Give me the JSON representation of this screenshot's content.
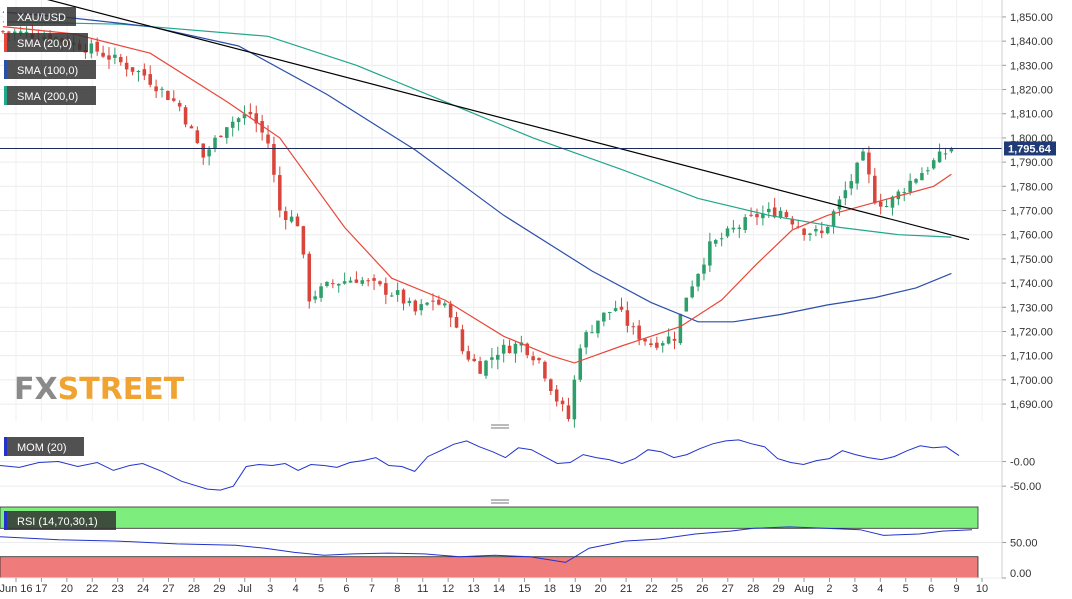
{
  "symbol": "XAU/USD",
  "indicators": {
    "sma20": {
      "label": "SMA (20,0)",
      "color": "#e8483b"
    },
    "sma100": {
      "label": "SMA (100,0)",
      "color": "#2b4fa8"
    },
    "sma200": {
      "label": "SMA (200,0)",
      "color": "#22a68c"
    },
    "mom": {
      "label": "MOM (20)",
      "color": "#2233cc"
    },
    "rsi": {
      "label": "RSI (14,70,30,1)",
      "color": "#2233cc"
    }
  },
  "logo": {
    "fx": "FX",
    "street": "STREET",
    "fx_color": "#8a8a8a",
    "street_color": "#f0a330"
  },
  "chart_data": [
    {
      "type": "candlestick",
      "title": "XAU/USD",
      "y_ticks": [
        "1,850.00",
        "1,840.00",
        "1,830.00",
        "1,820.00",
        "1,810.00",
        "1,800.00",
        "1,790.00",
        "1,780.00",
        "1,770.00",
        "1,760.00",
        "1,750.00",
        "1,740.00",
        "1,730.00",
        "1,720.00",
        "1,710.00",
        "1,700.00",
        "1,690.00"
      ],
      "ylim": [
        1683,
        1857
      ],
      "last_price": 1795.64,
      "last_price_label": "1,795.64",
      "x_labels": [
        "Jun 16",
        "17",
        "20",
        "22",
        "23",
        "24",
        "27",
        "28",
        "29",
        "Jul",
        "3",
        "4",
        "5",
        "6",
        "7",
        "8",
        "11",
        "12",
        "13",
        "14",
        "15",
        "18",
        "19",
        "20",
        "21",
        "22",
        "25",
        "26",
        "27",
        "28",
        "29",
        "Aug",
        "2",
        "3",
        "4",
        "5",
        "6",
        "9",
        "10"
      ],
      "close_path": [
        [
          0,
          1844
        ],
        [
          8,
          1842
        ],
        [
          16,
          1836
        ],
        [
          24,
          1826
        ],
        [
          30,
          1813
        ],
        [
          34,
          1792
        ],
        [
          38,
          1806
        ],
        [
          42,
          1810
        ],
        [
          45,
          1798
        ],
        [
          47,
          1770
        ],
        [
          50,
          1765
        ],
        [
          52,
          1734
        ],
        [
          56,
          1740
        ],
        [
          60,
          1742
        ],
        [
          64,
          1738
        ],
        [
          67,
          1735
        ],
        [
          70,
          1728
        ],
        [
          73,
          1733
        ],
        [
          76,
          1728
        ],
        [
          78,
          1712
        ],
        [
          81,
          1705
        ],
        [
          84,
          1712
        ],
        [
          88,
          1715
        ],
        [
          91,
          1708
        ],
        [
          94,
          1692
        ],
        [
          96,
          1684
        ],
        [
          98,
          1715
        ],
        [
          101,
          1725
        ],
        [
          104,
          1730
        ],
        [
          107,
          1720
        ],
        [
          110,
          1715
        ],
        [
          114,
          1718
        ],
        [
          116,
          1735
        ],
        [
          120,
          1755
        ],
        [
          124,
          1762
        ],
        [
          128,
          1768
        ],
        [
          132,
          1770
        ],
        [
          136,
          1762
        ],
        [
          139,
          1760
        ],
        [
          143,
          1778
        ],
        [
          146,
          1792
        ],
        [
          148,
          1775
        ],
        [
          150,
          1772
        ],
        [
          154,
          1782
        ],
        [
          158,
          1790
        ],
        [
          161,
          1796
        ]
      ],
      "sma20": [
        [
          0,
          1846
        ],
        [
          12,
          1843
        ],
        [
          25,
          1835
        ],
        [
          38,
          1815
        ],
        [
          47,
          1800
        ],
        [
          58,
          1763
        ],
        [
          66,
          1742
        ],
        [
          75,
          1733
        ],
        [
          85,
          1718
        ],
        [
          93,
          1710
        ],
        [
          97,
          1707
        ],
        [
          105,
          1714
        ],
        [
          115,
          1722
        ],
        [
          122,
          1733
        ],
        [
          128,
          1748
        ],
        [
          134,
          1762
        ],
        [
          140,
          1768
        ],
        [
          146,
          1772
        ],
        [
          152,
          1776
        ],
        [
          158,
          1780
        ],
        [
          161,
          1785
        ]
      ],
      "sma100": [
        [
          0,
          1852
        ],
        [
          10,
          1850
        ],
        [
          25,
          1846
        ],
        [
          40,
          1838
        ],
        [
          55,
          1818
        ],
        [
          70,
          1795
        ],
        [
          85,
          1768
        ],
        [
          100,
          1745
        ],
        [
          110,
          1732
        ],
        [
          118,
          1724
        ],
        [
          124,
          1724
        ],
        [
          132,
          1727
        ],
        [
          140,
          1731
        ],
        [
          148,
          1734
        ],
        [
          155,
          1738
        ],
        [
          161,
          1744
        ]
      ],
      "sma200": [
        [
          0,
          1848
        ],
        [
          20,
          1847
        ],
        [
          45,
          1842
        ],
        [
          60,
          1830
        ],
        [
          75,
          1815
        ],
        [
          90,
          1800
        ],
        [
          105,
          1787
        ],
        [
          118,
          1775
        ],
        [
          130,
          1768
        ],
        [
          142,
          1763
        ],
        [
          152,
          1760
        ],
        [
          161,
          1759
        ]
      ],
      "trendline": [
        [
          0,
          1862
        ],
        [
          164,
          1758
        ]
      ]
    },
    {
      "type": "line",
      "title": "MOM (20)",
      "y_ticks": [
        "-0.00",
        "-50.00"
      ],
      "series": [
        {
          "name": "MOM (20)",
          "values": [
            [
              0,
              -8
            ],
            [
              6,
              -12
            ],
            [
              12,
              -2
            ],
            [
              18,
              0
            ],
            [
              24,
              -10
            ],
            [
              30,
              -2
            ],
            [
              35,
              -18
            ],
            [
              40,
              -8
            ],
            [
              44,
              -4
            ],
            [
              50,
              -20
            ],
            [
              56,
              -40
            ],
            [
              60,
              -48
            ],
            [
              64,
              -56
            ],
            [
              68,
              -58
            ],
            [
              72,
              -50
            ],
            [
              76,
              -10
            ],
            [
              80,
              -6
            ],
            [
              84,
              -8
            ],
            [
              88,
              -4
            ],
            [
              92,
              -18
            ],
            [
              96,
              -6
            ],
            [
              100,
              -8
            ],
            [
              104,
              -12
            ],
            [
              108,
              -2
            ],
            [
              112,
              2
            ],
            [
              116,
              8
            ],
            [
              120,
              -8
            ],
            [
              124,
              -10
            ],
            [
              128,
              -20
            ],
            [
              132,
              10
            ],
            [
              136,
              22
            ],
            [
              140,
              35
            ],
            [
              144,
              42
            ],
            [
              148,
              30
            ],
            [
              152,
              20
            ],
            [
              156,
              8
            ],
            [
              160,
              28
            ],
            [
              164,
              24
            ],
            [
              168,
              10
            ],
            [
              172,
              -4
            ],
            [
              176,
              -2
            ],
            [
              180,
              14
            ],
            [
              184,
              8
            ],
            [
              188,
              4
            ],
            [
              192,
              -4
            ],
            [
              196,
              6
            ],
            [
              200,
              24
            ],
            [
              204,
              20
            ],
            [
              208,
              8
            ],
            [
              212,
              14
            ],
            [
              216,
              26
            ],
            [
              220,
              36
            ],
            [
              224,
              42
            ],
            [
              228,
              44
            ],
            [
              232,
              36
            ],
            [
              236,
              30
            ],
            [
              240,
              6
            ],
            [
              244,
              -2
            ],
            [
              248,
              -6
            ],
            [
              252,
              2
            ],
            [
              256,
              6
            ],
            [
              260,
              22
            ],
            [
              264,
              14
            ],
            [
              268,
              8
            ],
            [
              272,
              4
            ],
            [
              276,
              10
            ],
            [
              280,
              22
            ],
            [
              284,
              32
            ],
            [
              288,
              28
            ],
            [
              292,
              30
            ],
            [
              296,
              12
            ]
          ]
        }
      ]
    },
    {
      "type": "line",
      "title": "RSI (14,70,30,1)",
      "y_ticks": [
        "50.00",
        "0.00"
      ],
      "overbought": 70,
      "oversold": 30,
      "series": [
        {
          "name": "RSI (14,70,30,1)",
          "values": [
            [
              0,
              58
            ],
            [
              10,
              54
            ],
            [
              20,
              52
            ],
            [
              30,
              48
            ],
            [
              40,
              46
            ],
            [
              45,
              42
            ],
            [
              50,
              36
            ],
            [
              55,
              32
            ],
            [
              60,
              34
            ],
            [
              66,
              35
            ],
            [
              72,
              34
            ],
            [
              78,
              30
            ],
            [
              84,
              32
            ],
            [
              90,
              30
            ],
            [
              96,
              22
            ],
            [
              100,
              42
            ],
            [
              106,
              52
            ],
            [
              112,
              55
            ],
            [
              118,
              62
            ],
            [
              124,
              66
            ],
            [
              128,
              70
            ],
            [
              134,
              72
            ],
            [
              140,
              70
            ],
            [
              146,
              68
            ],
            [
              150,
              60
            ],
            [
              156,
              62
            ],
            [
              160,
              66
            ],
            [
              165,
              68
            ]
          ]
        }
      ]
    }
  ]
}
